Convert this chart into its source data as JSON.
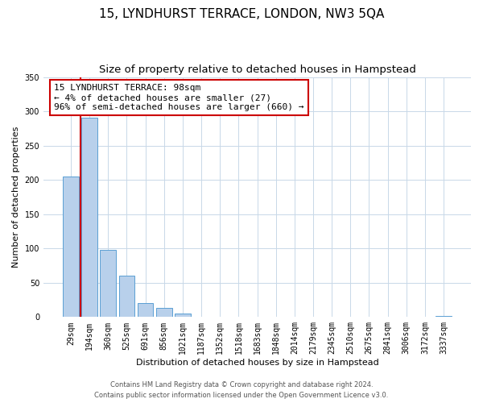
{
  "title": "15, LYNDHURST TERRACE, LONDON, NW3 5QA",
  "subtitle": "Size of property relative to detached houses in Hampstead",
  "xlabel": "Distribution of detached houses by size in Hampstead",
  "ylabel": "Number of detached properties",
  "bar_labels": [
    "29sqm",
    "194sqm",
    "360sqm",
    "525sqm",
    "691sqm",
    "856sqm",
    "1021sqm",
    "1187sqm",
    "1352sqm",
    "1518sqm",
    "1683sqm",
    "1848sqm",
    "2014sqm",
    "2179sqm",
    "2345sqm",
    "2510sqm",
    "2675sqm",
    "2841sqm",
    "3006sqm",
    "3172sqm",
    "3337sqm"
  ],
  "bar_values": [
    205,
    291,
    98,
    60,
    21,
    13,
    5,
    1,
    0,
    0,
    0,
    0,
    1,
    0,
    0,
    0,
    0,
    0,
    0,
    0,
    2
  ],
  "bar_color": "#b8d0eb",
  "bar_edge_color": "#5a9fd4",
  "ylim": [
    0,
    350
  ],
  "yticks": [
    0,
    50,
    100,
    150,
    200,
    250,
    300,
    350
  ],
  "property_line_color": "#cc0000",
  "property_line_x": 0.5,
  "annotation_text_line1": "15 LYNDHURST TERRACE: 98sqm",
  "annotation_text_line2": "← 4% of detached houses are smaller (27)",
  "annotation_text_line3": "96% of semi-detached houses are larger (660) →",
  "annotation_box_color": "#cc0000",
  "footer_line1": "Contains HM Land Registry data © Crown copyright and database right 2024.",
  "footer_line2": "Contains public sector information licensed under the Open Government Licence v3.0.",
  "background_color": "#ffffff",
  "grid_color": "#c8d8e8",
  "title_fontsize": 11,
  "subtitle_fontsize": 9.5,
  "axis_label_fontsize": 8,
  "tick_fontsize": 7,
  "annotation_fontsize": 8,
  "footer_fontsize": 6
}
